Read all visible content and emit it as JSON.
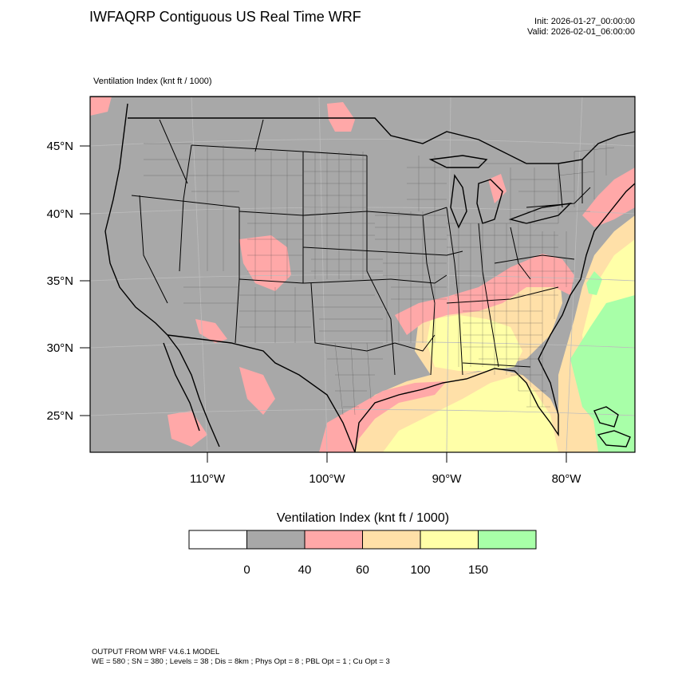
{
  "header": {
    "title": "IWFAQRP Contiguous US Real Time WRF",
    "init": "Init: 2026-01-27_00:00:00",
    "valid": "Valid: 2026-02-01_06:00:00"
  },
  "map": {
    "subtitle": "Ventilation Index   (knt ft / 1000)",
    "lat_labels": [
      "45°N",
      "40°N",
      "35°N",
      "30°N",
      "25°N"
    ],
    "lon_labels": [
      "110°W",
      "100°W",
      "90°W",
      "80°W"
    ],
    "colors": {
      "ocean_land_base": "#a8a8a8",
      "pink": "#ffa8a8",
      "tan": "#ffe0a8",
      "yellow": "#ffffa8",
      "green": "#a8ffa8"
    }
  },
  "colorbar": {
    "title": "Ventilation Index  (knt ft / 1000)",
    "bins": [
      {
        "color": "#ffffff"
      },
      {
        "color": "#a8a8a8"
      },
      {
        "color": "#ffa8a8"
      },
      {
        "color": "#ffe0a8"
      },
      {
        "color": "#ffffa8"
      },
      {
        "color": "#a8ffa8"
      }
    ],
    "labels": [
      "0",
      "40",
      "60",
      "100",
      "150"
    ]
  },
  "footer": {
    "line1": "OUTPUT FROM WRF V4.6.1 MODEL",
    "line2": "WE = 580 ; SN = 380 ; Levels = 38 ; Dis = 8km ; Phys Opt = 8 ; PBL Opt = 1 ; Cu Opt = 3"
  }
}
